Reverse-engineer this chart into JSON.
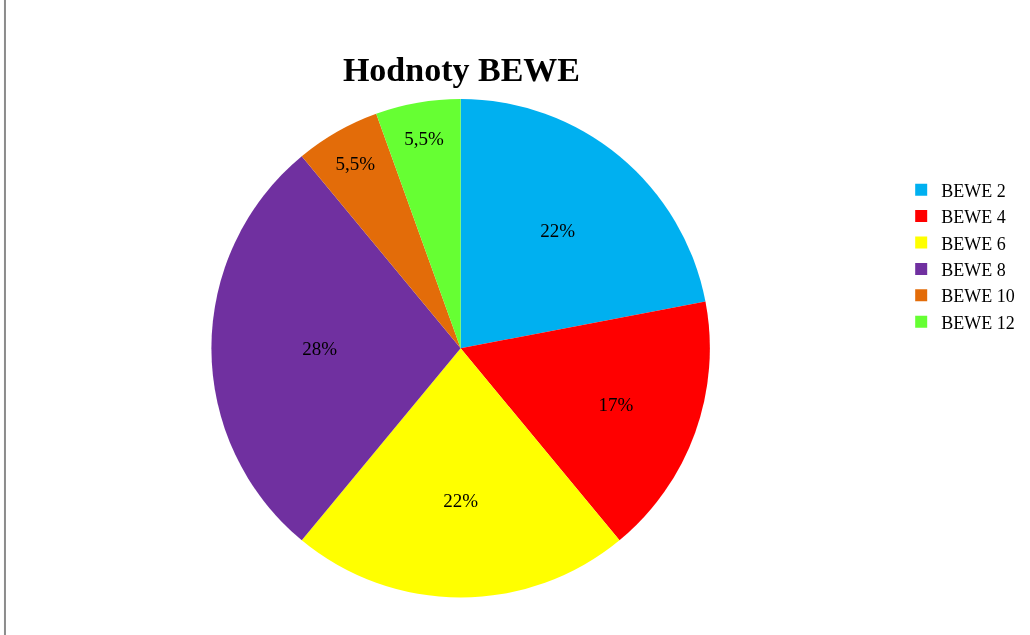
{
  "chart_data": {
    "type": "pie",
    "title": "Hodnoty BEWE",
    "categories": [
      "BEWE 2",
      "BEWE 4",
      "BEWE 6",
      "BEWE 8",
      "BEWE 10",
      "BEWE 12"
    ],
    "values": [
      22,
      17,
      22,
      28,
      5.5,
      5.5
    ],
    "value_labels": [
      "22%",
      "17%",
      "22%",
      "28%",
      "5,5%",
      "5,5%"
    ],
    "colors": [
      "#00b0f0",
      "#ff0000",
      "#ffff00",
      "#7030a0",
      "#e36c09",
      "#66ff33"
    ],
    "legend": "right"
  }
}
